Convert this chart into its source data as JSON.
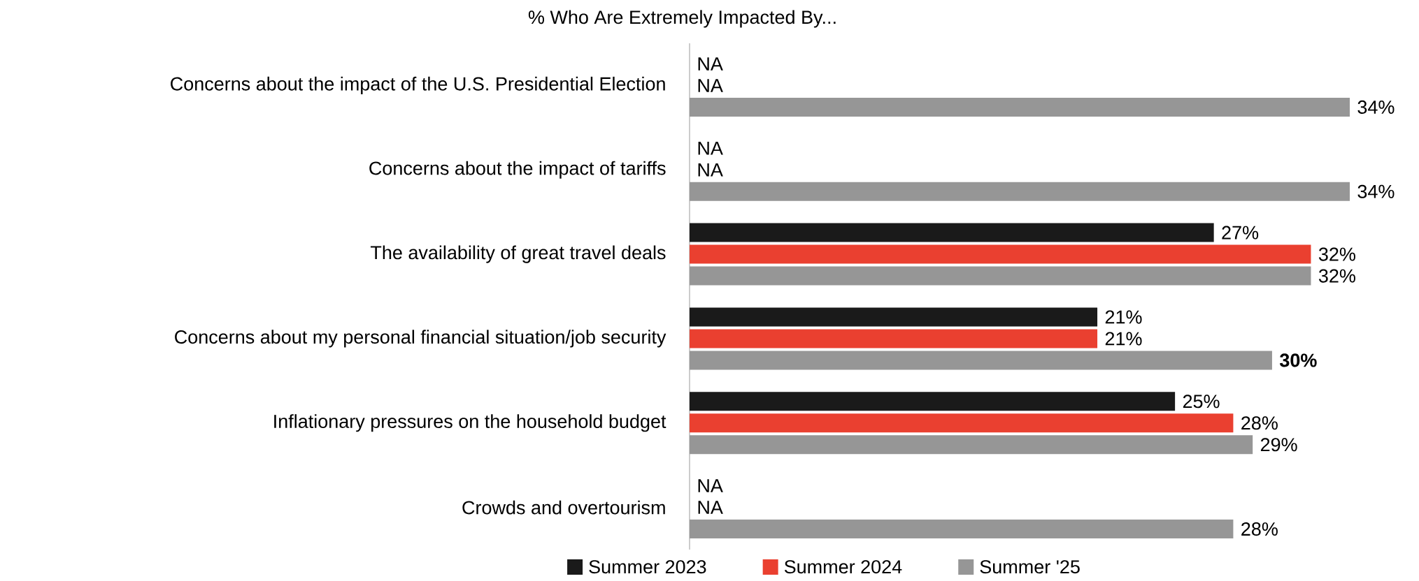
{
  "chart_data": {
    "type": "bar",
    "orientation": "horizontal",
    "title": "% Who Are Extremely Impacted By...",
    "categories": [
      "Concerns about the impact of the U.S. Presidential Election",
      "Concerns about the impact of tariffs",
      "The availability of great travel deals",
      "Concerns about my personal financial situation/job security",
      "Inflationary pressures on the household budget",
      "Crowds and overtourism"
    ],
    "series": [
      {
        "name": "Summer 2023",
        "color": "#1a1a1a",
        "values": [
          null,
          null,
          27,
          21,
          25,
          null
        ],
        "value_labels": [
          "NA",
          "NA",
          "27%",
          "21%",
          "25%",
          "NA"
        ]
      },
      {
        "name": "Summer 2024",
        "color": "#ea4030",
        "values": [
          null,
          null,
          32,
          21,
          28,
          null
        ],
        "value_labels": [
          "NA",
          "NA",
          "32%",
          "21%",
          "28%",
          "NA"
        ]
      },
      {
        "name": "Summer '25",
        "color": "#969696",
        "values": [
          34,
          34,
          32,
          30,
          29,
          28
        ],
        "value_labels": [
          "34%",
          "34%",
          "32%",
          "**30%**",
          "29%",
          "28%"
        ]
      }
    ],
    "legend": "bottom",
    "tick_labels": "y"
  }
}
